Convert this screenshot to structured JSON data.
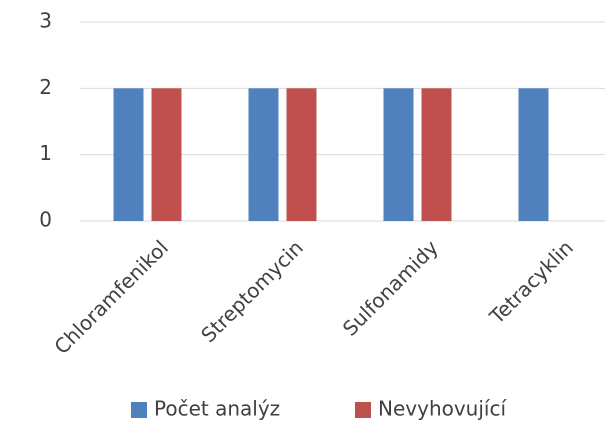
{
  "chart_data": {
    "type": "bar",
    "categories": [
      "Chloramfenikol",
      "Streptomycin",
      "Sulfonamidy",
      "Tetracyklin"
    ],
    "series": [
      {
        "name": "Počet analýz",
        "color": "#4f81bd",
        "values": [
          2,
          2,
          2,
          2
        ]
      },
      {
        "name": "Nevyhovující",
        "color": "#c0504d",
        "values": [
          2,
          2,
          2,
          0
        ]
      }
    ],
    "ylim": [
      0,
      3
    ],
    "yticks": [
      0,
      1,
      2,
      3
    ],
    "grid": true,
    "legend": "bottom"
  }
}
